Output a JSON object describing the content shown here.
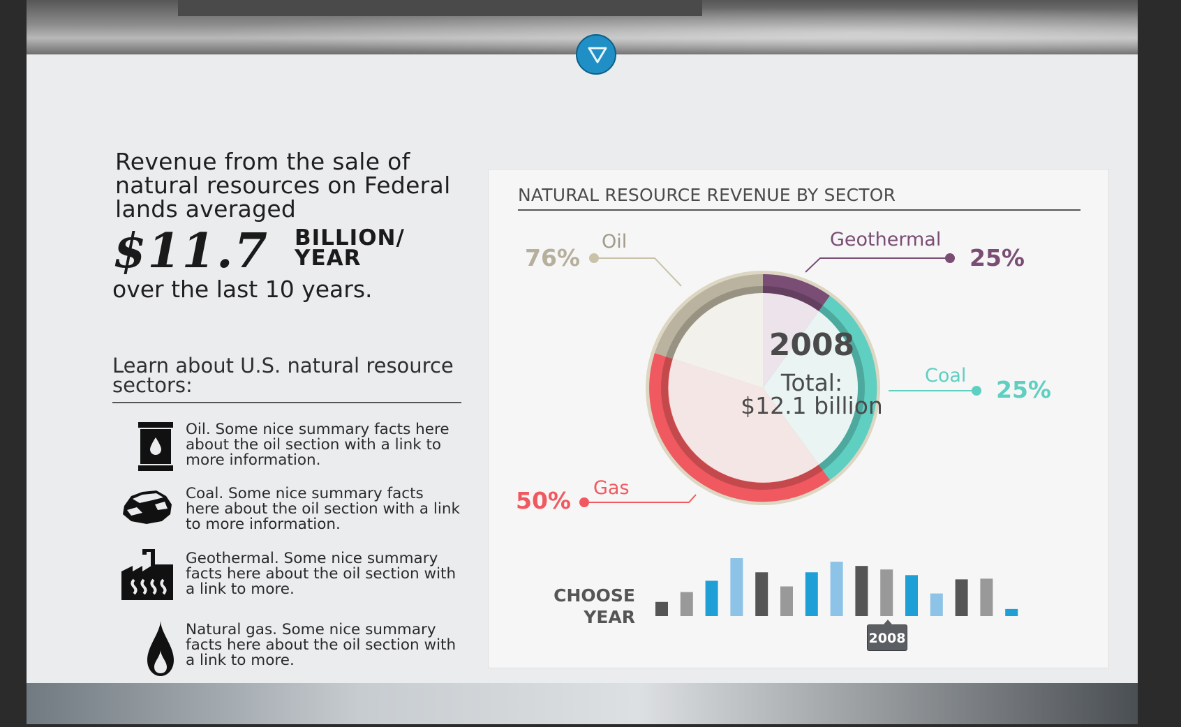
{
  "intro": {
    "lead": "Revenue from the sale of natural resources on Federal lands averaged",
    "amount": "$11.7",
    "unit_line1": "BILLION/",
    "unit_line2": "YEAR",
    "tail": "over the last 10 years."
  },
  "learn": {
    "heading": "Learn about U.S. natural resource sectors:",
    "sectors": [
      {
        "icon": "oil-barrel-icon",
        "text": "Oil. Some nice summary facts here about the oil section with a link to more information."
      },
      {
        "icon": "coal-icon",
        "text": "Coal. Some nice summary facts here about the oil section with a link to more information."
      },
      {
        "icon": "geothermal-icon",
        "text": "Geothermal. Some nice summary facts here about the oil section with a link to more."
      },
      {
        "icon": "gas-flame-icon",
        "text": "Natural gas. Some nice summary facts here about the oil section with a link to more."
      }
    ]
  },
  "card": {
    "title": "NATURAL RESOURCE REVENUE BY SECTOR",
    "center_year": "2008",
    "center_total_line1": "Total:",
    "center_total_line2": "$12.1 billion",
    "choose_line1": "CHOOSE",
    "choose_line2": "YEAR",
    "selected_year": "2008"
  },
  "colors": {
    "oil": "#c9c2a9",
    "gas": "#f0595f",
    "coal": "#5fcfc1",
    "geothermal": "#7a4d74",
    "scroll_button": "#1f8fc6"
  },
  "chart_data": {
    "type": "pie",
    "title": "NATURAL RESOURCE REVENUE BY SECTOR",
    "year": "2008",
    "total": "$12.1 billion",
    "slices": [
      {
        "name": "Oil",
        "label": "76%",
        "color": "#c9c2a9"
      },
      {
        "name": "Geothermal",
        "label": "25%",
        "color": "#7a4d74"
      },
      {
        "name": "Coal",
        "label": "25%",
        "color": "#5fcfc1"
      },
      {
        "name": "Gas",
        "label": "50%",
        "color": "#f0595f"
      }
    ],
    "year_selector": {
      "type": "bar",
      "values": [
        20,
        34,
        50,
        82,
        62,
        42,
        62,
        77,
        71,
        66,
        58,
        32,
        52,
        53,
        10
      ],
      "colors": [
        "#555",
        "#999",
        "#1e9fd6",
        "#8cc3e6",
        "#555",
        "#999",
        "#1e9fd6",
        "#8cc3e6",
        "#555",
        "#999",
        "#1e9fd6",
        "#8cc3e6",
        "#555",
        "#999",
        "#1e9fd6"
      ],
      "selected_index": 9
    }
  }
}
